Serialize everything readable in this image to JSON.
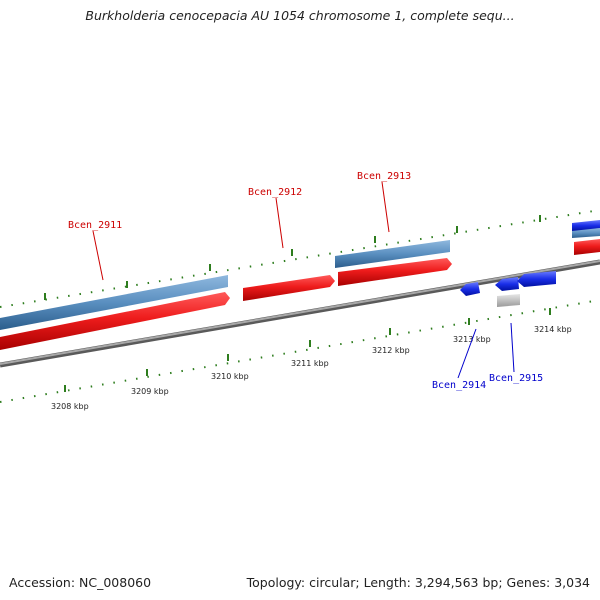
{
  "title": "Burkholderia cenocepacia AU 1054 chromosome 1, complete sequ...",
  "footer": {
    "accession": "Accession: NC_008060",
    "summary": "Topology: circular; Length: 3,294,563 bp; Genes: 3,034"
  },
  "scale_labels": [
    "3208 kbp",
    "3209 kbp",
    "3210 kbp",
    "3211 kbp",
    "3212 kbp",
    "3213 kbp",
    "3214 kbp"
  ],
  "genes": [
    {
      "name": "Bcen_2911",
      "color": "#cc0000"
    },
    {
      "name": "Bcen_2912",
      "color": "#cc0000"
    },
    {
      "name": "Bcen_2913",
      "color": "#cc0000"
    },
    {
      "name": "Bcen_2914",
      "color": "#0000cc"
    },
    {
      "name": "Bcen_2915",
      "color": "#0000cc"
    }
  ],
  "colors": {
    "forward_cds": "#e8141c",
    "reverse_cds": "#1a2ee8",
    "gene_bar": "#5a8fc0",
    "backbone": "#808080",
    "tick": "#2e7d1e",
    "pseudo": "#c8c8c8"
  }
}
